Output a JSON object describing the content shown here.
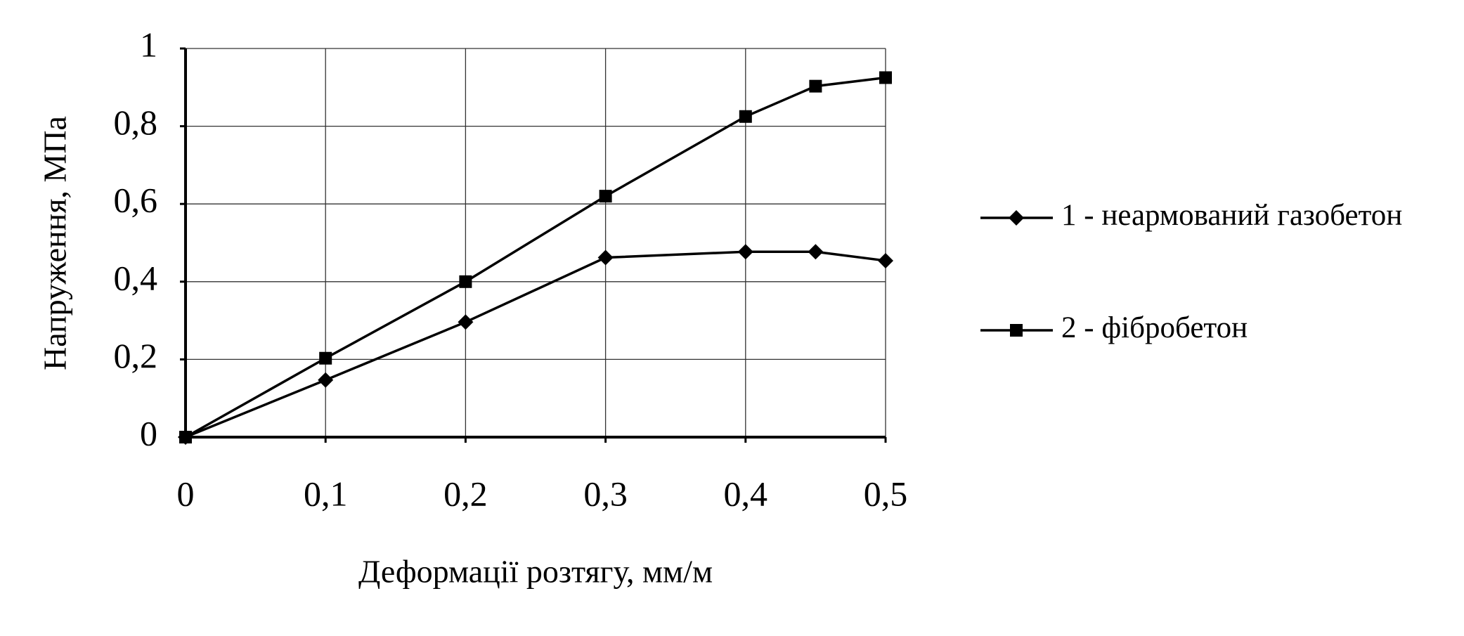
{
  "chart_data": {
    "type": "line",
    "x_label": "Деформації розтягу, мм/м",
    "y_label": "Напруження,  МПа",
    "x": [
      0,
      0.1,
      0.2,
      0.3,
      0.4,
      0.45,
      0.5
    ],
    "series": [
      {
        "name": "1 - неармований газобетон",
        "color": "#000000",
        "marker": "diamond",
        "values": [
          0,
          0.147,
          0.296,
          0.462,
          0.477,
          0.477,
          0.454
        ]
      },
      {
        "name": "2 - фібробетон",
        "color": "#000000",
        "marker": "square",
        "values": [
          0,
          0.203,
          0.4,
          0.62,
          0.825,
          0.903,
          0.925
        ]
      }
    ],
    "xlim": [
      0,
      0.5
    ],
    "ylim": [
      0,
      1
    ],
    "xticks": [
      0,
      {
        "value": 0.1,
        "label": "0,1"
      },
      {
        "value": 0.2,
        "label": "0,2"
      },
      {
        "value": 0.3,
        "label": "0,3"
      },
      {
        "value": 0.4,
        "label": "0,4"
      },
      {
        "value": 0.5,
        "label": "0,5"
      }
    ],
    "yticks": [
      0,
      {
        "value": 0.2,
        "label": "0,2"
      },
      {
        "value": 0.4,
        "label": "0,4"
      },
      {
        "value": 0.6,
        "label": "0,6"
      },
      {
        "value": 0.8,
        "label": "0,8"
      },
      1
    ],
    "grid": true,
    "legend": "right"
  }
}
